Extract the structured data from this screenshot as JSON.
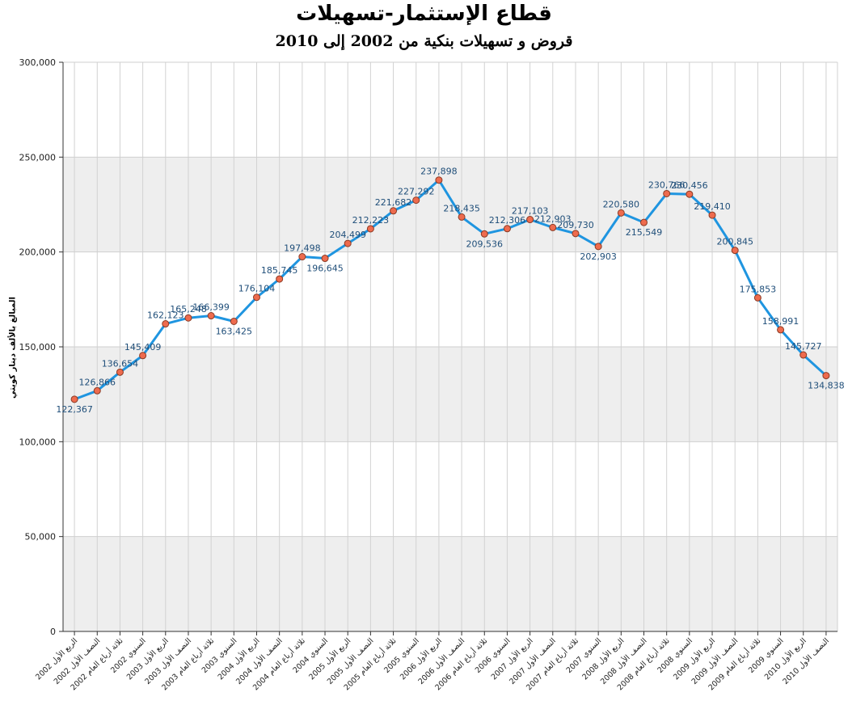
{
  "chart_data": {
    "type": "line",
    "title": "قطاع الإستثمار-تسهيلات",
    "subtitle": "قروض و تسهيلات بنكية من 2002 إلى 2010",
    "ylabel": "المبالغ بالألف دينار كويتي",
    "xlabel": "",
    "ylim": [
      0,
      300000
    ],
    "yticks": [
      "0",
      "50,000",
      "100,000",
      "150,000",
      "200,000",
      "250,000",
      "300,000"
    ],
    "grid": true,
    "series_color": "#1f95e0",
    "marker_color": "#ee6b4e",
    "categories": [
      "الربع الأول 2002",
      "النصف الأول 2002",
      "ثلاثة أرباع العام 2002",
      "السنوي 2002",
      "الربع الأول 2003",
      "النصف الأول 2003",
      "ثلاثة أرباع العام 2003",
      "السنوي 2003",
      "الربع الأول 2004",
      "النصف الأول 2004",
      "ثلاثة أرباع العام 2004",
      "السنوي 2004",
      "الربع الأول 2005",
      "النصف الأول 2005",
      "ثلاثة أرباع العام 2005",
      "السنوي 2005",
      "الربع الأول 2006",
      "النصف الأول 2006",
      "ثلاثة أرباع العام 2006",
      "السنوي 2006",
      "الربع الأول 2007",
      "النصف الأول 2007",
      "ثلاثة أرباع العام 2007",
      "السنوي 2007",
      "الربع الأول 2008",
      "النصف الأول 2008",
      "ثلاثة أرباع العام 2008",
      "السنوي 2008",
      "الربع الأول 2009",
      "النصف الأول 2009",
      "ثلاثة أرباع العام 2009",
      "السنوي 2009",
      "الربع الأول 2010",
      "النصف الأول 2010"
    ],
    "values": [
      122367,
      126866,
      136654,
      145409,
      162123,
      165248,
      166399,
      163425,
      176104,
      185745,
      197498,
      196645,
      204499,
      212223,
      221682,
      227292,
      237898,
      218435,
      209536,
      212306,
      217103,
      212903,
      209730,
      202903,
      220580,
      215549,
      230766,
      230456,
      219410,
      200845,
      175853,
      158991,
      145727,
      134838
    ],
    "data_labels": [
      "122,367",
      "126,866",
      "136,654",
      "145,409",
      "162,123",
      "165,248",
      "166,399",
      "163,425",
      "176,104",
      "185,745",
      "197,498",
      "196,645",
      "204,499",
      "212,223",
      "221,682",
      "227,292",
      "237,898",
      "218,435",
      "209,536",
      "212,306",
      "217,103",
      "212,903",
      "209,730",
      "202,903",
      "220,580",
      "215,549",
      "230,766",
      "230,456",
      "219,410",
      "200,845",
      "175,853",
      "158,991",
      "145,727",
      "134,838"
    ]
  }
}
